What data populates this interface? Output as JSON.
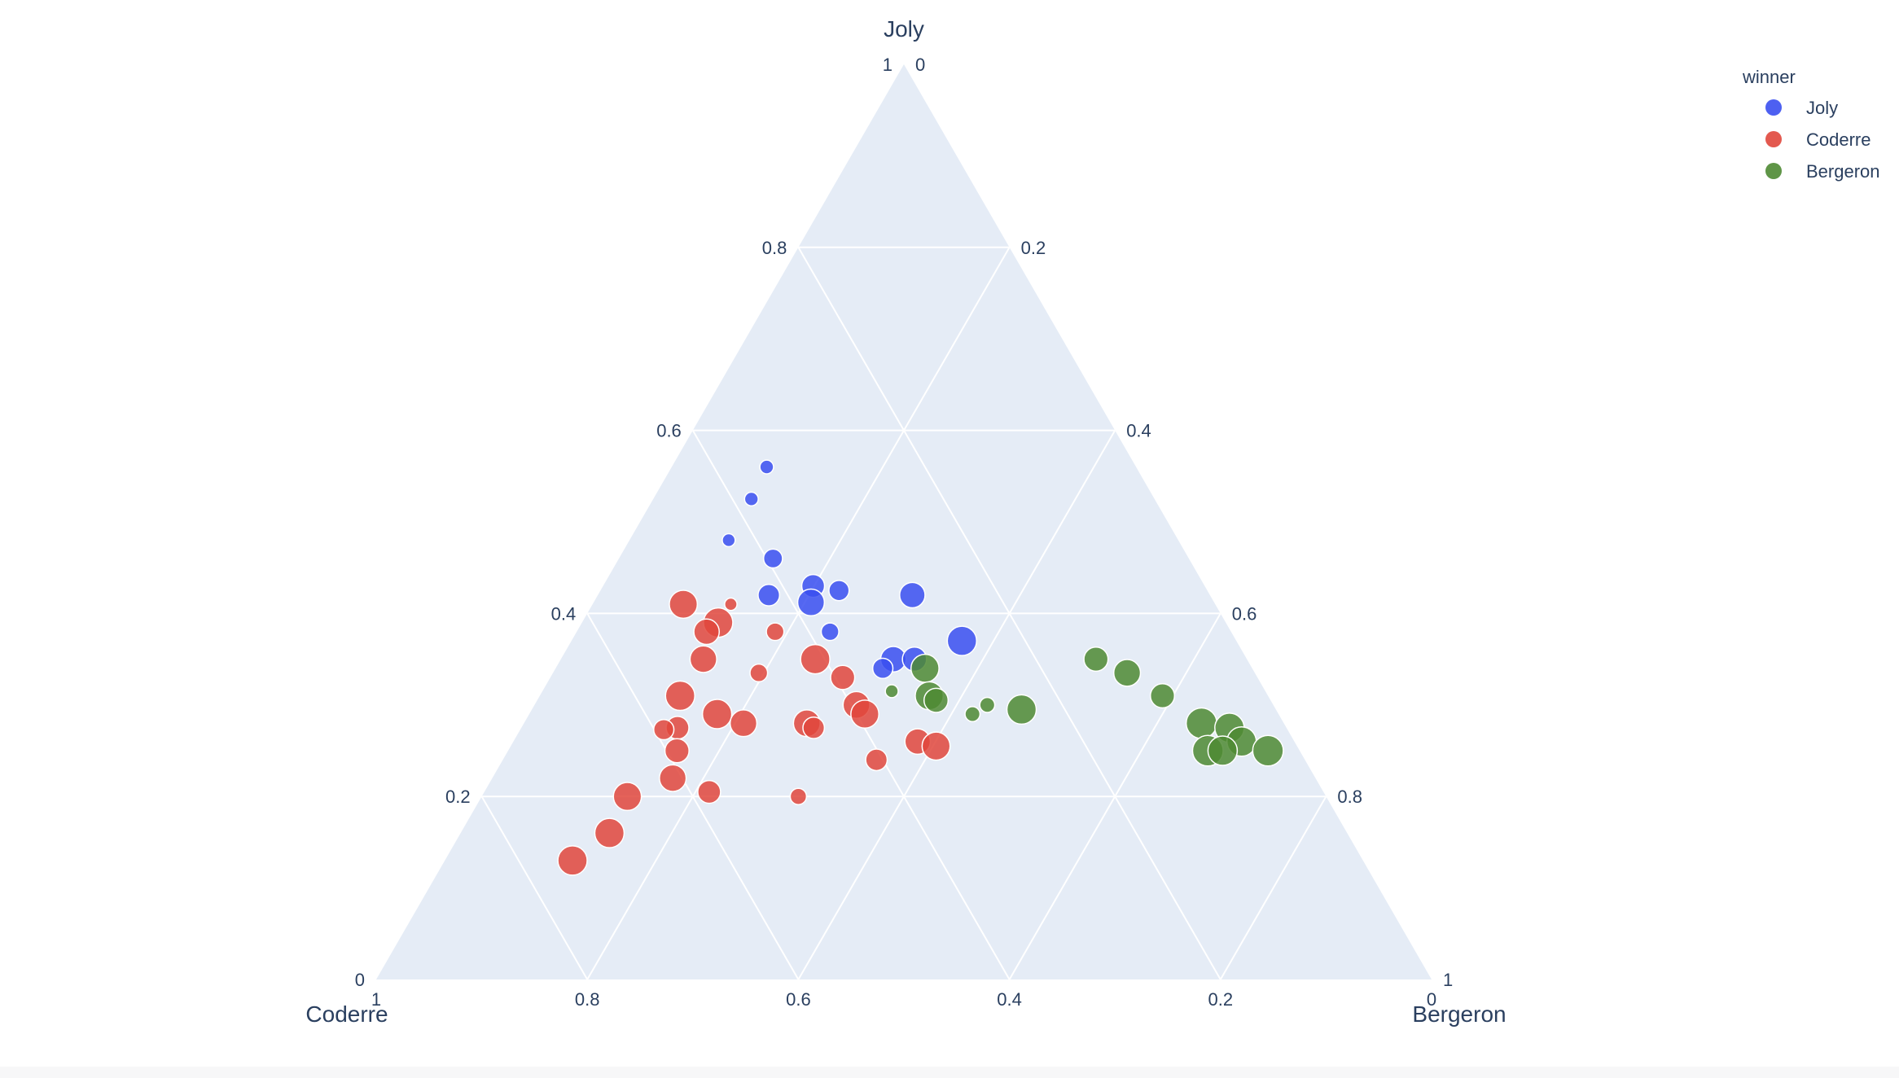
{
  "chart_data": {
    "type": "scatter",
    "subtype": "ternary",
    "axes": {
      "a": {
        "title": "Joly",
        "ticks": [
          "0",
          "0.2",
          "0.4",
          "0.6",
          "0.8",
          "1"
        ]
      },
      "b": {
        "title": "Coderre",
        "ticks": [
          "0",
          "0.2",
          "0.4",
          "0.6",
          "0.8",
          "1"
        ]
      },
      "c": {
        "title": "Bergeron",
        "ticks": [
          "0",
          "0.2",
          "0.4",
          "0.6",
          "0.8",
          "1"
        ]
      }
    },
    "grid": true,
    "background_color": "#e5ecf6",
    "legend": {
      "title": "winner",
      "placement": "top-right",
      "items": [
        {
          "label": "Joly",
          "color": "#3a4ff0"
        },
        {
          "label": "Coderre",
          "color": "#e0473c"
        },
        {
          "label": "Bergeron",
          "color": "#4e8a33"
        }
      ]
    },
    "series": [
      {
        "name": "Joly",
        "color": "#3a4ff0",
        "points": [
          {
            "a": 0.56,
            "b": 0.35,
            "c": 0.09,
            "size": 0.15
          },
          {
            "a": 0.525,
            "b": 0.382,
            "c": 0.093,
            "size": 0.15
          },
          {
            "a": 0.48,
            "b": 0.426,
            "c": 0.094,
            "size": 0.12
          },
          {
            "a": 0.46,
            "b": 0.394,
            "c": 0.146,
            "size": 0.35
          },
          {
            "a": 0.42,
            "b": 0.418,
            "c": 0.162,
            "size": 0.45
          },
          {
            "a": 0.43,
            "b": 0.371,
            "c": 0.199,
            "size": 0.5
          },
          {
            "a": 0.412,
            "b": 0.382,
            "c": 0.206,
            "size": 0.65
          },
          {
            "a": 0.425,
            "b": 0.349,
            "c": 0.226,
            "size": 0.4
          },
          {
            "a": 0.42,
            "b": 0.282,
            "c": 0.298,
            "size": 0.6
          },
          {
            "a": 0.38,
            "b": 0.38,
            "c": 0.24,
            "size": 0.3
          },
          {
            "a": 0.37,
            "b": 0.26,
            "c": 0.37,
            "size": 0.75
          },
          {
            "a": 0.35,
            "b": 0.335,
            "c": 0.315,
            "size": 0.6
          },
          {
            "a": 0.35,
            "b": 0.315,
            "c": 0.335,
            "size": 0.55
          },
          {
            "a": 0.34,
            "b": 0.35,
            "c": 0.31,
            "size": 0.4
          }
        ]
      },
      {
        "name": "Coderre",
        "color": "#e0473c",
        "points": [
          {
            "a": 0.41,
            "b": 0.504,
            "c": 0.086,
            "size": 0.7
          },
          {
            "a": 0.41,
            "b": 0.459,
            "c": 0.131,
            "size": 0.1
          },
          {
            "a": 0.39,
            "b": 0.481,
            "c": 0.129,
            "size": 0.75
          },
          {
            "a": 0.38,
            "b": 0.497,
            "c": 0.123,
            "size": 0.6
          },
          {
            "a": 0.38,
            "b": 0.432,
            "c": 0.188,
            "size": 0.3
          },
          {
            "a": 0.35,
            "b": 0.409,
            "c": 0.241,
            "size": 0.75
          },
          {
            "a": 0.35,
            "b": 0.515,
            "c": 0.135,
            "size": 0.65
          },
          {
            "a": 0.33,
            "b": 0.393,
            "c": 0.277,
            "size": 0.55
          },
          {
            "a": 0.335,
            "b": 0.47,
            "c": 0.195,
            "size": 0.3
          },
          {
            "a": 0.31,
            "b": 0.557,
            "c": 0.133,
            "size": 0.75
          },
          {
            "a": 0.29,
            "b": 0.532,
            "c": 0.178,
            "size": 0.75
          },
          {
            "a": 0.3,
            "b": 0.395,
            "c": 0.305,
            "size": 0.65
          },
          {
            "a": 0.29,
            "b": 0.392,
            "c": 0.318,
            "size": 0.7
          },
          {
            "a": 0.28,
            "b": 0.512,
            "c": 0.208,
            "size": 0.65
          },
          {
            "a": 0.28,
            "b": 0.452,
            "c": 0.268,
            "size": 0.65
          },
          {
            "a": 0.275,
            "b": 0.448,
            "c": 0.277,
            "size": 0.45
          },
          {
            "a": 0.275,
            "b": 0.577,
            "c": 0.148,
            "size": 0.5
          },
          {
            "a": 0.273,
            "b": 0.591,
            "c": 0.136,
            "size": 0.4
          },
          {
            "a": 0.26,
            "b": 0.357,
            "c": 0.383,
            "size": 0.6
          },
          {
            "a": 0.255,
            "b": 0.342,
            "c": 0.403,
            "size": 0.7
          },
          {
            "a": 0.25,
            "b": 0.59,
            "c": 0.16,
            "size": 0.55
          },
          {
            "a": 0.24,
            "b": 0.406,
            "c": 0.354,
            "size": 0.45
          },
          {
            "a": 0.22,
            "b": 0.609,
            "c": 0.171,
            "size": 0.65
          },
          {
            "a": 0.205,
            "b": 0.582,
            "c": 0.213,
            "size": 0.5
          },
          {
            "a": 0.2,
            "b": 0.662,
            "c": 0.138,
            "size": 0.7
          },
          {
            "a": 0.2,
            "b": 0.5,
            "c": 0.3,
            "size": 0.25
          },
          {
            "a": 0.16,
            "b": 0.699,
            "c": 0.141,
            "size": 0.75
          },
          {
            "a": 0.13,
            "b": 0.749,
            "c": 0.121,
            "size": 0.75
          }
        ]
      },
      {
        "name": "Bergeron",
        "color": "#4e8a33",
        "points": [
          {
            "a": 0.34,
            "b": 0.31,
            "c": 0.35,
            "size": 0.7
          },
          {
            "a": 0.315,
            "b": 0.354,
            "c": 0.331,
            "size": 0.12
          },
          {
            "a": 0.31,
            "b": 0.321,
            "c": 0.369,
            "size": 0.7
          },
          {
            "a": 0.305,
            "b": 0.317,
            "c": 0.378,
            "size": 0.55
          },
          {
            "a": 0.3,
            "b": 0.271,
            "c": 0.429,
            "size": 0.2
          },
          {
            "a": 0.29,
            "b": 0.29,
            "c": 0.42,
            "size": 0.2
          },
          {
            "a": 0.295,
            "b": 0.241,
            "c": 0.464,
            "size": 0.75
          },
          {
            "a": 0.35,
            "b": 0.143,
            "c": 0.507,
            "size": 0.55
          },
          {
            "a": 0.335,
            "b": 0.121,
            "c": 0.544,
            "size": 0.65
          },
          {
            "a": 0.31,
            "b": 0.1,
            "c": 0.59,
            "size": 0.55
          },
          {
            "a": 0.28,
            "b": 0.078,
            "c": 0.642,
            "size": 0.8
          },
          {
            "a": 0.275,
            "b": 0.054,
            "c": 0.671,
            "size": 0.75
          },
          {
            "a": 0.26,
            "b": 0.05,
            "c": 0.69,
            "size": 0.75
          },
          {
            "a": 0.25,
            "b": 0.087,
            "c": 0.663,
            "size": 0.8
          },
          {
            "a": 0.25,
            "b": 0.073,
            "c": 0.677,
            "size": 0.75
          },
          {
            "a": 0.25,
            "b": 0.03,
            "c": 0.72,
            "size": 0.8
          }
        ]
      }
    ]
  }
}
